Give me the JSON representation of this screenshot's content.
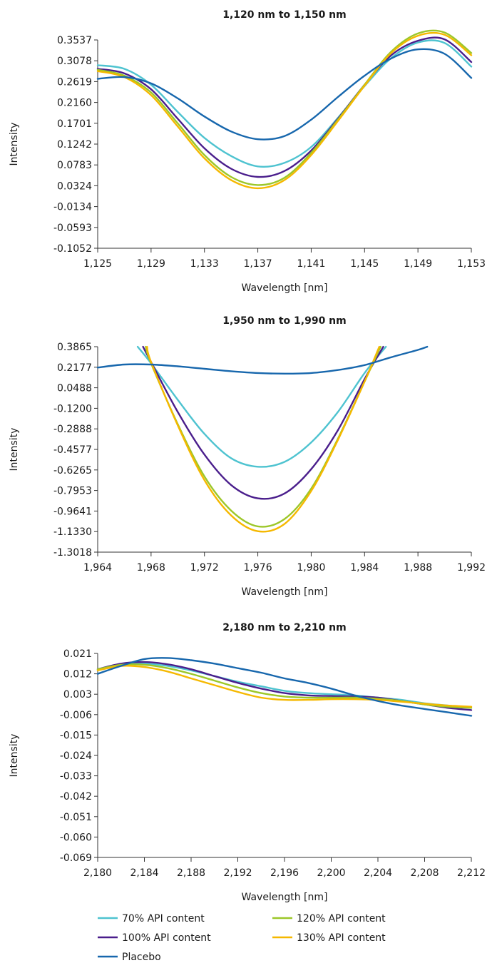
{
  "series_styles": [
    {
      "name": "70% API content",
      "color": "#4ec3d0"
    },
    {
      "name": "100% API content",
      "color": "#4a1e8c"
    },
    {
      "name": "120% API content",
      "color": "#9cc729"
    },
    {
      "name": "130% API content",
      "color": "#f5b800"
    },
    {
      "name": "Placebo",
      "color": "#1767ad"
    }
  ],
  "legend": {
    "items": [
      "70% API content",
      "120% API content",
      "100% API content",
      "130% API content",
      "Placebo"
    ]
  },
  "chart_data": [
    {
      "type": "line",
      "title": "1,120 nm to 1,150 nm",
      "xlabel": "Wavelength [nm]",
      "ylabel": "Intensity",
      "xlim": [
        1125,
        1153
      ],
      "ylim": [
        -0.1052,
        0.3537
      ],
      "xticks": [
        "1,125",
        "1,129",
        "1,133",
        "1,137",
        "1,141",
        "1,145",
        "1,149",
        "1,153"
      ],
      "yticks": [
        "0.3537",
        "0.3078",
        "0.2619",
        "0.2160",
        "0.1701",
        "0.1242",
        "0.0783",
        "0.0324",
        "-0.0134",
        "-0.0593",
        "-0.1052"
      ],
      "series": [
        {
          "name": "70% API content",
          "x": [
            1125,
            1127,
            1129,
            1131,
            1133,
            1135,
            1137,
            1139,
            1141,
            1143,
            1145,
            1147,
            1149,
            1151,
            1153
          ],
          "values": [
            0.298,
            0.29,
            0.255,
            0.195,
            0.138,
            0.098,
            0.075,
            0.083,
            0.118,
            0.182,
            0.252,
            0.314,
            0.348,
            0.347,
            0.295
          ]
        },
        {
          "name": "100% API content",
          "x": [
            1125,
            1127,
            1129,
            1131,
            1133,
            1135,
            1137,
            1139,
            1141,
            1143,
            1145,
            1147,
            1149,
            1151,
            1153
          ],
          "values": [
            0.29,
            0.28,
            0.245,
            0.18,
            0.115,
            0.07,
            0.052,
            0.065,
            0.11,
            0.18,
            0.255,
            0.32,
            0.352,
            0.355,
            0.305
          ]
        },
        {
          "name": "120% API content",
          "x": [
            1125,
            1127,
            1129,
            1131,
            1133,
            1135,
            1137,
            1139,
            1141,
            1143,
            1145,
            1147,
            1149,
            1151,
            1153
          ],
          "values": [
            0.288,
            0.275,
            0.238,
            0.17,
            0.1,
            0.052,
            0.034,
            0.05,
            0.105,
            0.178,
            0.255,
            0.328,
            0.368,
            0.37,
            0.325
          ]
        },
        {
          "name": "130% API content",
          "x": [
            1125,
            1127,
            1129,
            1131,
            1133,
            1135,
            1137,
            1139,
            1141,
            1143,
            1145,
            1147,
            1149,
            1151,
            1153
          ],
          "values": [
            0.285,
            0.272,
            0.232,
            0.163,
            0.093,
            0.045,
            0.027,
            0.045,
            0.1,
            0.175,
            0.253,
            0.325,
            0.363,
            0.365,
            0.32
          ]
        },
        {
          "name": "Placebo",
          "x": [
            1125,
            1127,
            1129,
            1131,
            1133,
            1135,
            1137,
            1139,
            1141,
            1143,
            1145,
            1147,
            1149,
            1151,
            1153
          ],
          "values": [
            0.268,
            0.272,
            0.258,
            0.225,
            0.185,
            0.152,
            0.135,
            0.142,
            0.178,
            0.228,
            0.275,
            0.313,
            0.333,
            0.323,
            0.27
          ]
        }
      ]
    },
    {
      "type": "line",
      "title": "1,950 nm to 1,990 nm",
      "xlabel": "Wavelength [nm]",
      "ylabel": "Intensity",
      "xlim": [
        1964,
        1992
      ],
      "ylim": [
        -1.3018,
        0.3865
      ],
      "xticks": [
        "1,964",
        "1,968",
        "1,972",
        "1,976",
        "1,980",
        "1,984",
        "1,988",
        "1,992"
      ],
      "yticks": [
        "0.3865",
        "0.2177",
        "0.0488",
        "-0.1200",
        "-0.2888",
        "-0.4577",
        "-0.6265",
        "-0.7953",
        "-0.9641",
        "-1.1330",
        "-1.3018"
      ],
      "series": [
        {
          "name": "70% API content",
          "x": [
            1967,
            1968,
            1970,
            1972,
            1974,
            1976,
            1978,
            1980,
            1982,
            1984,
            1985.6
          ],
          "values": [
            0.386,
            0.25,
            -0.05,
            -0.33,
            -0.53,
            -0.6,
            -0.56,
            -0.4,
            -0.15,
            0.17,
            0.386
          ]
        },
        {
          "name": "100% API content",
          "x": [
            1967.4,
            1968,
            1970,
            1972,
            1974,
            1976,
            1978,
            1980,
            1982,
            1984,
            1985.4
          ],
          "values": [
            0.386,
            0.26,
            -0.15,
            -0.5,
            -0.75,
            -0.86,
            -0.82,
            -0.62,
            -0.3,
            0.12,
            0.386
          ]
        },
        {
          "name": "120% API content",
          "x": [
            1967.6,
            1968,
            1970,
            1972,
            1974,
            1976,
            1978,
            1980,
            1982,
            1984,
            1985.2
          ],
          "values": [
            0.386,
            0.25,
            -0.25,
            -0.68,
            -0.96,
            -1.09,
            -1.03,
            -0.78,
            -0.37,
            0.1,
            0.386
          ]
        },
        {
          "name": "130% API content",
          "x": [
            1967.7,
            1968,
            1970,
            1972,
            1974,
            1976,
            1978,
            1980,
            1982,
            1984,
            1985.1
          ],
          "values": [
            0.386,
            0.26,
            -0.26,
            -0.71,
            -1.0,
            -1.13,
            -1.07,
            -0.8,
            -0.38,
            0.1,
            0.386
          ]
        },
        {
          "name": "Placebo",
          "x": [
            1964,
            1966,
            1968,
            1970,
            1972,
            1974,
            1976,
            1978,
            1980,
            1982,
            1984,
            1986,
            1988,
            1988.7
          ],
          "values": [
            0.215,
            0.24,
            0.24,
            0.225,
            0.205,
            0.185,
            0.17,
            0.165,
            0.17,
            0.195,
            0.235,
            0.3,
            0.36,
            0.386
          ]
        }
      ]
    },
    {
      "type": "line",
      "title": "2,180 nm to 2,210 nm",
      "xlabel": "Wavelength [nm]",
      "ylabel": "Intensity",
      "xlim": [
        2180,
        2212
      ],
      "ylim": [
        -0.069,
        0.021
      ],
      "xticks": [
        "2,180",
        "2,184",
        "2,188",
        "2,192",
        "2,196",
        "2,200",
        "2,204",
        "2,208",
        "2,212"
      ],
      "yticks": [
        "0.021",
        "0.012",
        "0.003",
        "-0.006",
        "-0.015",
        "-0.024",
        "-0.033",
        "-0.042",
        "-0.051",
        "-0.060",
        "-0.069"
      ],
      "series": [
        {
          "name": "70% API content",
          "x": [
            2180,
            2182,
            2184,
            2186,
            2188,
            2190,
            2192,
            2194,
            2196,
            2198,
            2200,
            2202,
            2204,
            2206,
            2208,
            2210,
            2212
          ],
          "values": [
            0.0135,
            0.016,
            0.0165,
            0.0155,
            0.0135,
            0.011,
            0.0085,
            0.0065,
            0.0045,
            0.0035,
            0.003,
            0.0025,
            0.0015,
            0.0005,
            -0.001,
            -0.002,
            -0.003
          ]
        },
        {
          "name": "100% API content",
          "x": [
            2180,
            2182,
            2184,
            2186,
            2188,
            2190,
            2192,
            2194,
            2196,
            2198,
            2200,
            2202,
            2204,
            2206,
            2208,
            2210,
            2212
          ],
          "values": [
            0.014,
            0.0165,
            0.0172,
            0.0162,
            0.014,
            0.011,
            0.008,
            0.0055,
            0.0035,
            0.0025,
            0.0022,
            0.002,
            0.0015,
            0.0,
            -0.0015,
            -0.003,
            -0.004
          ]
        },
        {
          "name": "120% API content",
          "x": [
            2180,
            2182,
            2184,
            2186,
            2188,
            2190,
            2192,
            2194,
            2196,
            2198,
            2200,
            2202,
            2204,
            2206,
            2208,
            2210,
            2212
          ],
          "values": [
            0.014,
            0.016,
            0.016,
            0.0145,
            0.012,
            0.009,
            0.006,
            0.0035,
            0.002,
            0.0015,
            0.0015,
            0.0015,
            0.001,
            0.0,
            -0.0015,
            -0.0025,
            -0.003
          ]
        },
        {
          "name": "130% API content",
          "x": [
            2180,
            2182,
            2184,
            2186,
            2188,
            2190,
            2192,
            2194,
            2196,
            2198,
            2200,
            2202,
            2204,
            2206,
            2208,
            2210,
            2212
          ],
          "values": [
            0.0135,
            0.0155,
            0.015,
            0.013,
            0.01,
            0.007,
            0.004,
            0.0015,
            0.0005,
            0.0005,
            0.0008,
            0.0008,
            0.0005,
            -0.0003,
            -0.0012,
            -0.002,
            -0.0025
          ]
        },
        {
          "name": "Placebo",
          "x": [
            2180,
            2182,
            2184,
            2186,
            2188,
            2190,
            2192,
            2194,
            2196,
            2198,
            2200,
            2202,
            2204,
            2206,
            2208,
            2210,
            2212
          ],
          "values": [
            0.012,
            0.0155,
            0.0185,
            0.019,
            0.018,
            0.0165,
            0.0145,
            0.0125,
            0.01,
            0.008,
            0.0055,
            0.0025,
            0.0,
            -0.002,
            -0.0035,
            -0.005,
            -0.0065
          ]
        }
      ]
    }
  ]
}
